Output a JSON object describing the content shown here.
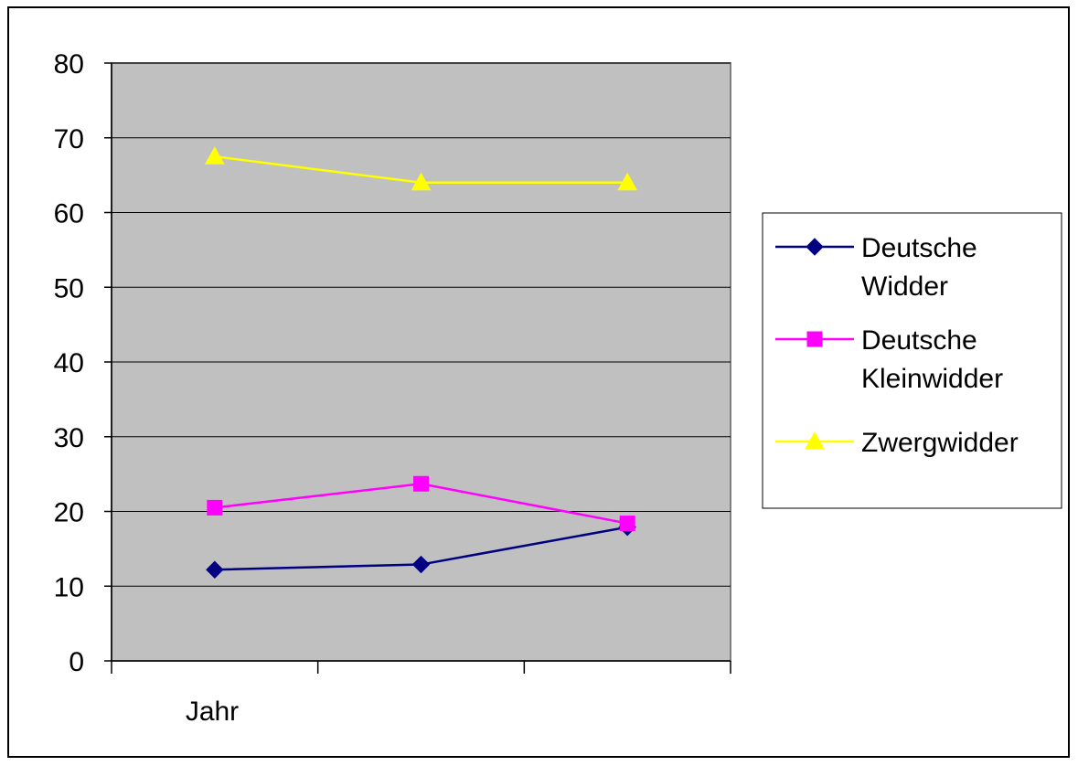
{
  "chart_data": {
    "type": "line",
    "title": "",
    "xlabel": "Jahr",
    "ylabel": "",
    "ylim": [
      0,
      80
    ],
    "yticks": [
      "0",
      "10",
      "20",
      "30",
      "40",
      "50",
      "60",
      "70",
      "80"
    ],
    "grid": true,
    "legend_position": "right",
    "categories": [
      "",
      "",
      ""
    ],
    "series": [
      {
        "name": "Deutsche Widder",
        "legend_lines": [
          "Deutsche",
          "Widder"
        ],
        "color": "#000080",
        "marker": "diamond",
        "values": [
          12.2,
          12.9,
          17.9
        ]
      },
      {
        "name": "Deutsche Kleinwidder",
        "legend_lines": [
          "Deutsche",
          "Kleinwidder"
        ],
        "color": "#FF00FF",
        "marker": "square",
        "values": [
          20.5,
          23.7,
          18.4
        ]
      },
      {
        "name": "Zwergwidder",
        "legend_lines": [
          "Zwergwidder"
        ],
        "color": "#FFFF00",
        "marker": "triangle",
        "values": [
          67.5,
          64.0,
          64.0
        ]
      }
    ],
    "plot_background": "#C0C0C0"
  }
}
